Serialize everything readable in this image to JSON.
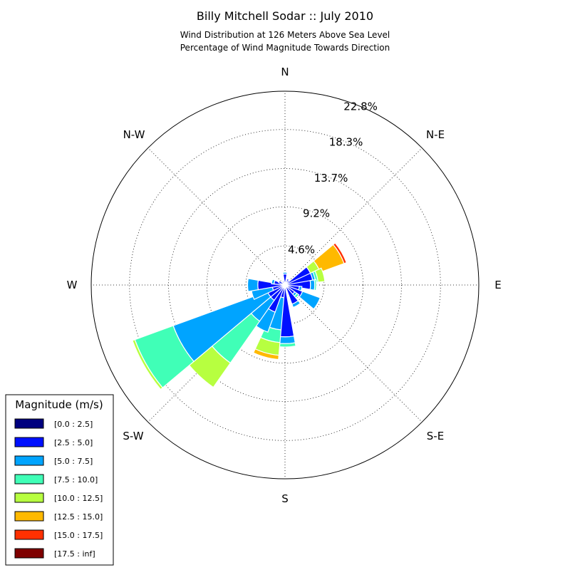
{
  "chart_data": {
    "type": "windrose",
    "title": "Billy Mitchell Sodar :: July 2010",
    "subtitle_lines": [
      "Wind Distribution at 126 Meters Above Sea Level",
      "Percentage of Wind Magnitude Towards Direction"
    ],
    "directions": [
      "N",
      "N-E",
      "E",
      "S-E",
      "S",
      "S-W",
      "W",
      "N-W"
    ],
    "radial_ticks": [
      "4.6%",
      "9.2%",
      "13.7%",
      "18.3%",
      "22.8%"
    ],
    "radial_max": 22.8,
    "legend": {
      "title": "Magnitude (m/s)",
      "bins": [
        {
          "label": "[0.0 : 2.5]",
          "color": "#00007f"
        },
        {
          "label": "[2.5 : 5.0]",
          "color": "#0010ff"
        },
        {
          "label": "[5.0 : 7.5]",
          "color": "#00a4ff"
        },
        {
          "label": "[7.5 : 10.0]",
          "color": "#40ffb7"
        },
        {
          "label": "[10.0 : 12.5]",
          "color": "#b7ff40"
        },
        {
          "label": "[12.5 : 15.0]",
          "color": "#ffb900"
        },
        {
          "label": "[15.0 : 17.5]",
          "color": "#ff3000"
        },
        {
          "label": "[17.5 : inf]",
          "color": "#7f0000"
        }
      ]
    },
    "sector_width_deg": 20,
    "sectors": [
      {
        "dir_deg": 0,
        "values": [
          0.3,
          1.0,
          0.2,
          0,
          0,
          0,
          0,
          0
        ]
      },
      {
        "dir_deg": 30,
        "values": [
          0.2,
          0.6,
          0,
          0,
          0,
          0,
          0,
          0
        ]
      },
      {
        "dir_deg": 45,
        "values": [
          0.2,
          0.5,
          0,
          0,
          0,
          0,
          0,
          0
        ]
      },
      {
        "dir_deg": 60,
        "values": [
          0.2,
          3.1,
          0,
          0,
          1.1,
          3.0,
          0.3,
          0
        ]
      },
      {
        "dir_deg": 75,
        "values": [
          0.2,
          3.1,
          0.3,
          0.3,
          0.8,
          0,
          0,
          0
        ]
      },
      {
        "dir_deg": 90,
        "values": [
          0.2,
          2.8,
          0.5,
          0.2,
          0,
          0,
          0,
          0
        ]
      },
      {
        "dir_deg": 105,
        "values": [
          0.2,
          1.5,
          0.3,
          0,
          0,
          0,
          0,
          0
        ]
      },
      {
        "dir_deg": 120,
        "values": [
          0.2,
          2.0,
          2.2,
          0,
          0,
          0,
          0,
          0
        ]
      },
      {
        "dir_deg": 135,
        "values": [
          0.2,
          1.2,
          0.3,
          0.3,
          0,
          0,
          0,
          0
        ]
      },
      {
        "dir_deg": 150,
        "values": [
          0.2,
          2.2,
          0.4,
          0,
          0,
          0,
          0,
          0
        ]
      },
      {
        "dir_deg": 180,
        "values": [
          0.3,
          5.8,
          0.8,
          0.4,
          0,
          0,
          0,
          0
        ]
      },
      {
        "dir_deg": 195,
        "values": [
          0.2,
          1.3,
          3.8,
          1.5,
          1.5,
          0.5,
          0,
          0
        ]
      },
      {
        "dir_deg": 210,
        "values": [
          0.2,
          3.2,
          2.5,
          0,
          0,
          0,
          0,
          0
        ]
      },
      {
        "dir_deg": 225,
        "values": [
          0.2,
          2.0,
          3.0,
          6.0,
          3.5,
          0,
          0,
          0
        ]
      },
      {
        "dir_deg": 240,
        "values": [
          0.2,
          2.0,
          11.8,
          4.8,
          0.3,
          0,
          0,
          0
        ]
      },
      {
        "dir_deg": 255,
        "values": [
          0.2,
          1.3,
          2.5,
          0,
          0,
          0,
          0,
          0
        ]
      },
      {
        "dir_deg": 270,
        "values": [
          0.2,
          3.0,
          1.2,
          0,
          0,
          0,
          0,
          0
        ]
      },
      {
        "dir_deg": 285,
        "values": [
          0.2,
          1.1,
          0.3,
          0,
          0,
          0,
          0,
          0
        ]
      },
      {
        "dir_deg": 300,
        "values": [
          0.2,
          0.6,
          0,
          0,
          0,
          0,
          0,
          0
        ]
      },
      {
        "dir_deg": 330,
        "values": [
          0.2,
          0.3,
          0,
          0,
          0,
          0,
          0,
          0
        ]
      }
    ]
  }
}
